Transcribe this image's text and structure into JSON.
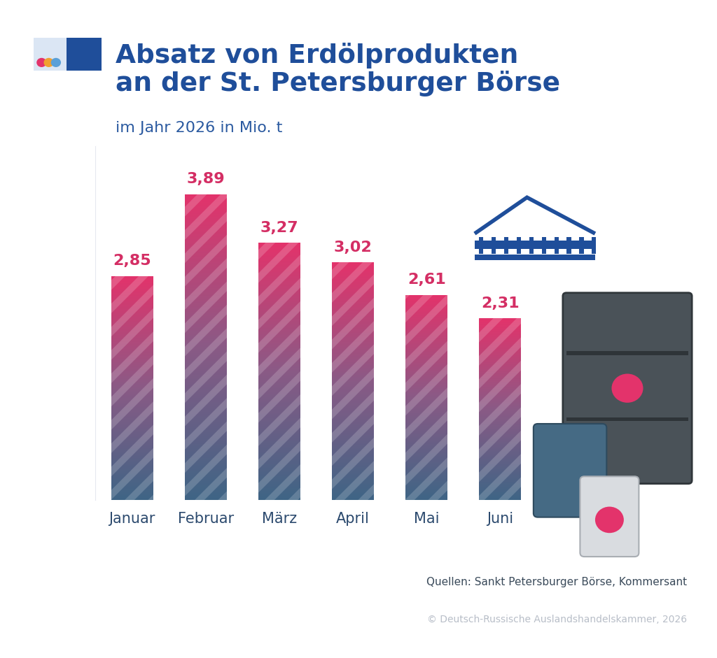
{
  "chart_data": {
    "type": "bar",
    "title": "Absatz von Erdölprodukten\nan der St. Petersburger Börse",
    "subtitle": "im Jahr 2026 in Mio. t",
    "categories": [
      "Januar",
      "Februar",
      "März",
      "April",
      "Mai",
      "Juni"
    ],
    "values": [
      2.85,
      3.89,
      3.27,
      3.02,
      2.61,
      2.31
    ],
    "value_labels": [
      "2,85",
      "3,89",
      "3,27",
      "3,02",
      "2,61",
      "2,31"
    ],
    "data_labels": true,
    "color": "#e3336b",
    "ylim": [
      0,
      4.5
    ],
    "yticks": [],
    "tick_labels": "x",
    "grid": false,
    "annotations": [
      "Quellen: Sankt Petersburger Börse, Kommersant",
      "© Deutsch-Russische Auslandshandelskammer, 2026"
    ]
  }
}
